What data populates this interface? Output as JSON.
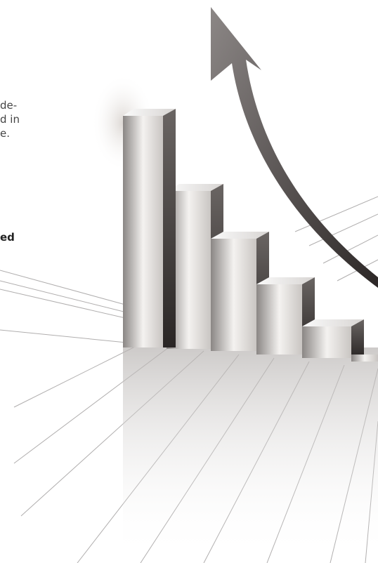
{
  "text_fragments": {
    "lines": [
      "de-",
      "d in",
      "e."
    ],
    "bold_line": "ed"
  }
}
